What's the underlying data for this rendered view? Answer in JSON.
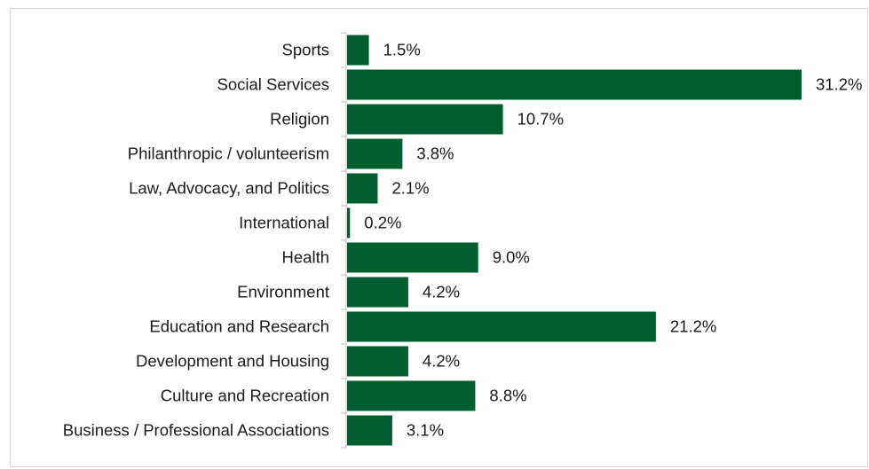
{
  "title": "",
  "chart_data": {
    "type": "bar",
    "orientation": "horizontal",
    "categories": [
      "Sports",
      "Social Services",
      "Religion",
      "Philanthropic / volunteerism",
      "Law, Advocacy, and Politics",
      "International",
      "Health",
      "Environment",
      "Education and Research",
      "Development and Housing",
      "Culture and Recreation",
      "Business / Professional Associations"
    ],
    "values": [
      1.5,
      31.2,
      10.7,
      3.8,
      2.1,
      0.2,
      9.0,
      4.2,
      21.2,
      4.2,
      8.8,
      3.1
    ],
    "value_labels": [
      "1.5%",
      "31.2%",
      "10.7%",
      "3.8%",
      "2.1%",
      "0.2%",
      "9.0%",
      "4.2%",
      "21.2%",
      "4.2%",
      "8.8%",
      "3.1%"
    ],
    "xlim": [
      0,
      31.2
    ],
    "xlabel": "",
    "ylabel": "",
    "grid": false,
    "bar_color": "#005e2e"
  }
}
